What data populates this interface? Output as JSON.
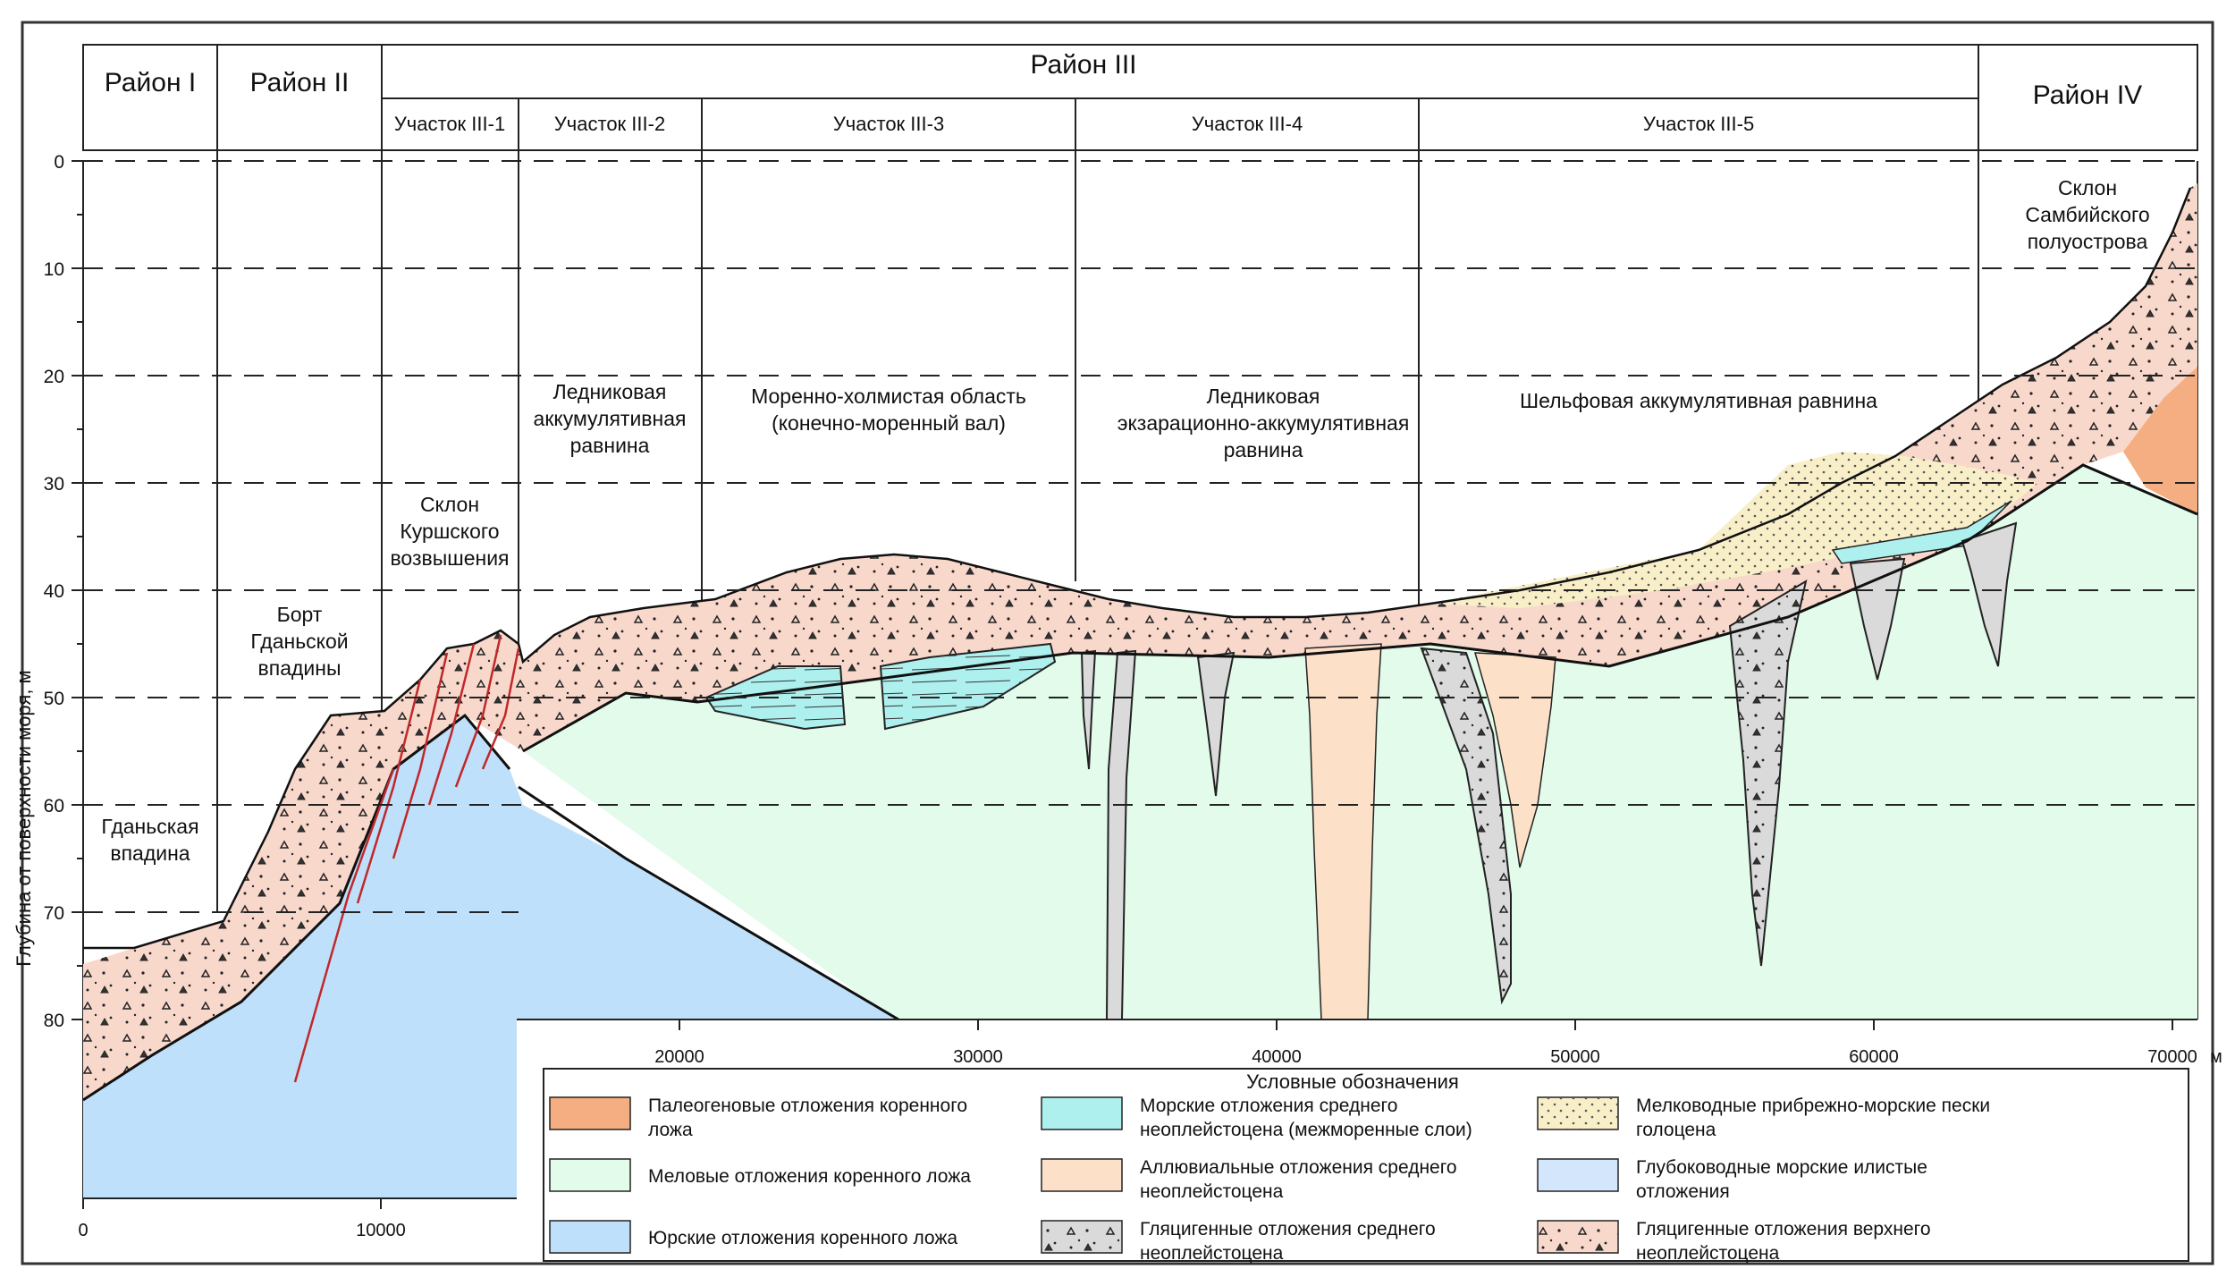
{
  "header": {
    "districts": [
      "Район I",
      "Район II",
      "Район III",
      "Район IV"
    ],
    "sections": [
      "Участок III-1",
      "Участок III-2",
      "Участок III-3",
      "Участок III-4",
      "Участок III-5"
    ]
  },
  "y_axis": {
    "label": "Глубина от поверхности моря, м",
    "ticks": [
      "0",
      "10",
      "20",
      "30",
      "40",
      "50",
      "60",
      "70",
      "80"
    ]
  },
  "x_axis": {
    "ticks": [
      "0",
      "10000",
      "20000",
      "30000",
      "40000",
      "50000",
      "60000",
      "70000"
    ],
    "unit": "м"
  },
  "annotations": {
    "gdansk_depression": [
      "Гданьская",
      "впадина"
    ],
    "gdansk_side": [
      "Борт",
      "Гданьской",
      "впадины"
    ],
    "curonian_slope": [
      "Склон",
      "Куршского",
      "возвышения"
    ],
    "glacial_plain": [
      "Ледниковая",
      "аккумулятивная",
      "равнина"
    ],
    "moraine_area": [
      "Моренно-холмистая область",
      "(конечно-моренный вал)"
    ],
    "exaration_plain": [
      "Ледниковая",
      "экзарационно-аккумулятивная",
      "равнина"
    ],
    "shelf_plain": [
      "Шельфовая аккумулятивная равнина"
    ],
    "sambia_slope": [
      "Склон",
      "Самбийского",
      "полуострова"
    ]
  },
  "legend": {
    "title": "Условные обозначения",
    "items": [
      {
        "lines": [
          "Палеогеновые отложения коренного",
          "ложа"
        ],
        "color": "#f5ae82",
        "pattern": "solid"
      },
      {
        "lines": [
          "Морские отложения среднего",
          "неоплейстоцена (межморенные слои)"
        ],
        "color": "#aef0ee",
        "pattern": "lines"
      },
      {
        "lines": [
          "Мелководные прибрежно-морские пески",
          "голоцена"
        ],
        "color": "#f8efc8",
        "pattern": "dots"
      },
      {
        "lines": [
          "Меловые отложения коренного ложа"
        ],
        "color": "#e2fbea",
        "pattern": "solid"
      },
      {
        "lines": [
          "Аллювиальные отложения среднего",
          "неоплейстоцена"
        ],
        "color": "#fde0c8",
        "pattern": "solid"
      },
      {
        "lines": [
          "Глубоководные морские илистые",
          "отложения"
        ],
        "color": "#d4e6fb",
        "pattern": "solid"
      },
      {
        "lines": [
          "Юрские отложения коренного ложа"
        ],
        "color": "#bfe0fa",
        "pattern": "solid"
      },
      {
        "lines": [
          "Гляцигенные отложения среднего",
          "неоплейстоцена"
        ],
        "color": "#dadada",
        "pattern": "triangles"
      },
      {
        "lines": [
          "Гляцигенные отложения верхнего",
          "неоплейстоцена"
        ],
        "color": "#f9d8cc",
        "pattern": "triangles"
      }
    ]
  },
  "colors": {
    "paleogene": "#f5ae82",
    "cretaceous": "#e2fbea",
    "jurassic": "#bfe0fa",
    "marine_mid": "#aef0ee",
    "alluvial": "#fde0c8",
    "glacial_mid": "#dadada",
    "holocene_sand": "#f8efc8",
    "deep_marine": "#d4e6fb",
    "glacial_upper": "#f9d8cc",
    "fault": "#c0282a"
  }
}
